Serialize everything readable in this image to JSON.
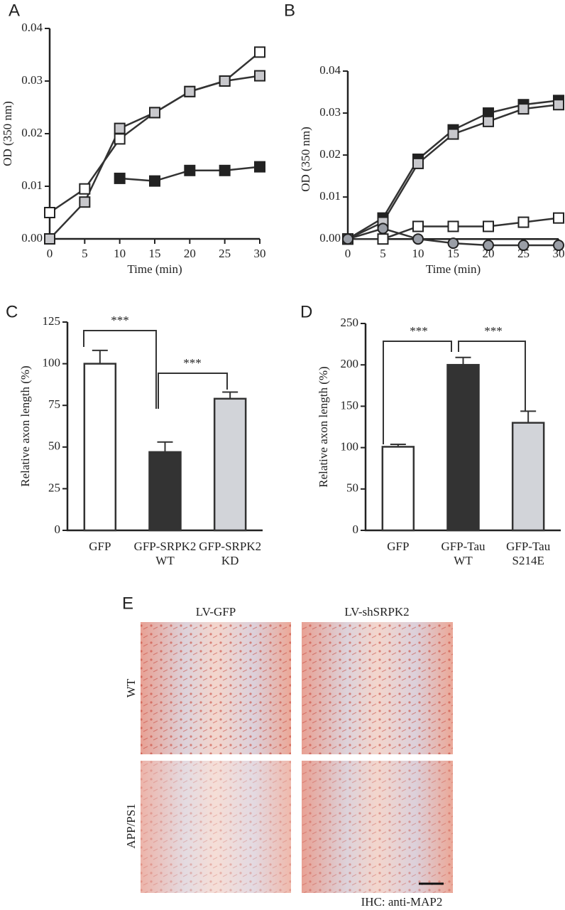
{
  "chart_data": [
    {
      "type": "line",
      "panel": "A",
      "xlabel": "Time (min)",
      "ylabel": "OD (350 nm)",
      "x": [
        0,
        5,
        10,
        15,
        20,
        25,
        30
      ],
      "xlim": [
        0,
        30
      ],
      "xticks": [
        0,
        5,
        10,
        15,
        20,
        25,
        30
      ],
      "ylim": [
        0,
        0.04
      ],
      "yticks": [
        {
          "value": 0,
          "label": "0.00"
        },
        0.01,
        0.02,
        0.03,
        0.04
      ],
      "series": [
        {
          "color": "#ffffff",
          "marker": "square",
          "values": [
            0.005,
            0.0095,
            0.019,
            0.024,
            0.028,
            0.03,
            0.0355
          ]
        },
        {
          "color": "#c8c8cc",
          "marker": "square",
          "values": [
            0,
            0.007,
            0.021,
            0.024,
            0.028,
            0.03,
            0.031
          ]
        },
        {
          "color": "#222222",
          "marker": "square",
          "values": [
            null,
            null,
            0.0115,
            0.011,
            0.013,
            0.013,
            0.0137
          ]
        }
      ]
    },
    {
      "type": "line",
      "panel": "B",
      "xlabel": "Time (min)",
      "ylabel": "OD (350 nm)",
      "x": [
        0,
        5,
        10,
        15,
        20,
        25,
        30
      ],
      "xlim": [
        0,
        30
      ],
      "xticks": [
        0,
        5,
        10,
        15,
        20,
        25,
        30
      ],
      "ylim": [
        -0.002,
        0.04
      ],
      "yticks": [
        {
          "value": 0,
          "label": "0.00"
        },
        0.01,
        0.02,
        0.03,
        0.04
      ],
      "series": [
        {
          "color": "#222222",
          "marker": "square",
          "values": [
            0,
            0.005,
            0.019,
            0.026,
            0.03,
            0.032,
            0.033
          ]
        },
        {
          "color": "#c8c8cc",
          "marker": "square",
          "values": [
            0,
            0.004,
            0.018,
            0.025,
            0.028,
            0.031,
            0.032
          ]
        },
        {
          "color": "#ffffff",
          "marker": "square",
          "values": [
            0,
            0,
            0.003,
            0.003,
            0.003,
            0.004,
            0.005
          ]
        },
        {
          "color": "#9a9ea6",
          "marker": "circle",
          "values": [
            0,
            0.0025,
            0,
            -0.001,
            -0.0015,
            -0.0015,
            -0.0015
          ]
        }
      ]
    },
    {
      "type": "bar",
      "panel": "C",
      "ylabel": "Relative axon length (%)",
      "categories": [
        "GFP",
        "GFP-SRPK2",
        "GFP-SRPK2"
      ],
      "category_sublabels": [
        null,
        "WT",
        "KD"
      ],
      "values": [
        100,
        47,
        79
      ],
      "errors": [
        8,
        6,
        4
      ],
      "colors": [
        "#ffffff",
        "#333333",
        "#d2d4d9"
      ],
      "ylim": [
        0,
        125
      ],
      "yticks": [
        0,
        25,
        50,
        75,
        100,
        125
      ],
      "annotations": [
        "***",
        "***"
      ]
    },
    {
      "type": "bar",
      "panel": "D",
      "ylabel": "Relative axon length (%)",
      "categories": [
        "GFP",
        "GFP-Tau",
        "GFP-Tau"
      ],
      "category_sublabels": [
        null,
        "WT",
        "S214E"
      ],
      "values": [
        101,
        200,
        130
      ],
      "errors": [
        3,
        9,
        14
      ],
      "colors": [
        "#ffffff",
        "#333333",
        "#d2d4d9"
      ],
      "ylim": [
        0,
        250
      ],
      "yticks": [
        0,
        50,
        100,
        150,
        200,
        250
      ],
      "annotations": [
        "***",
        "***"
      ]
    }
  ],
  "panel_e": {
    "panel": "E",
    "columns": [
      "LV-GFP",
      "LV-shSRPK2"
    ],
    "rows": [
      "WT",
      "APP/PS1"
    ],
    "caption": "IHC: anti-MAP2"
  }
}
